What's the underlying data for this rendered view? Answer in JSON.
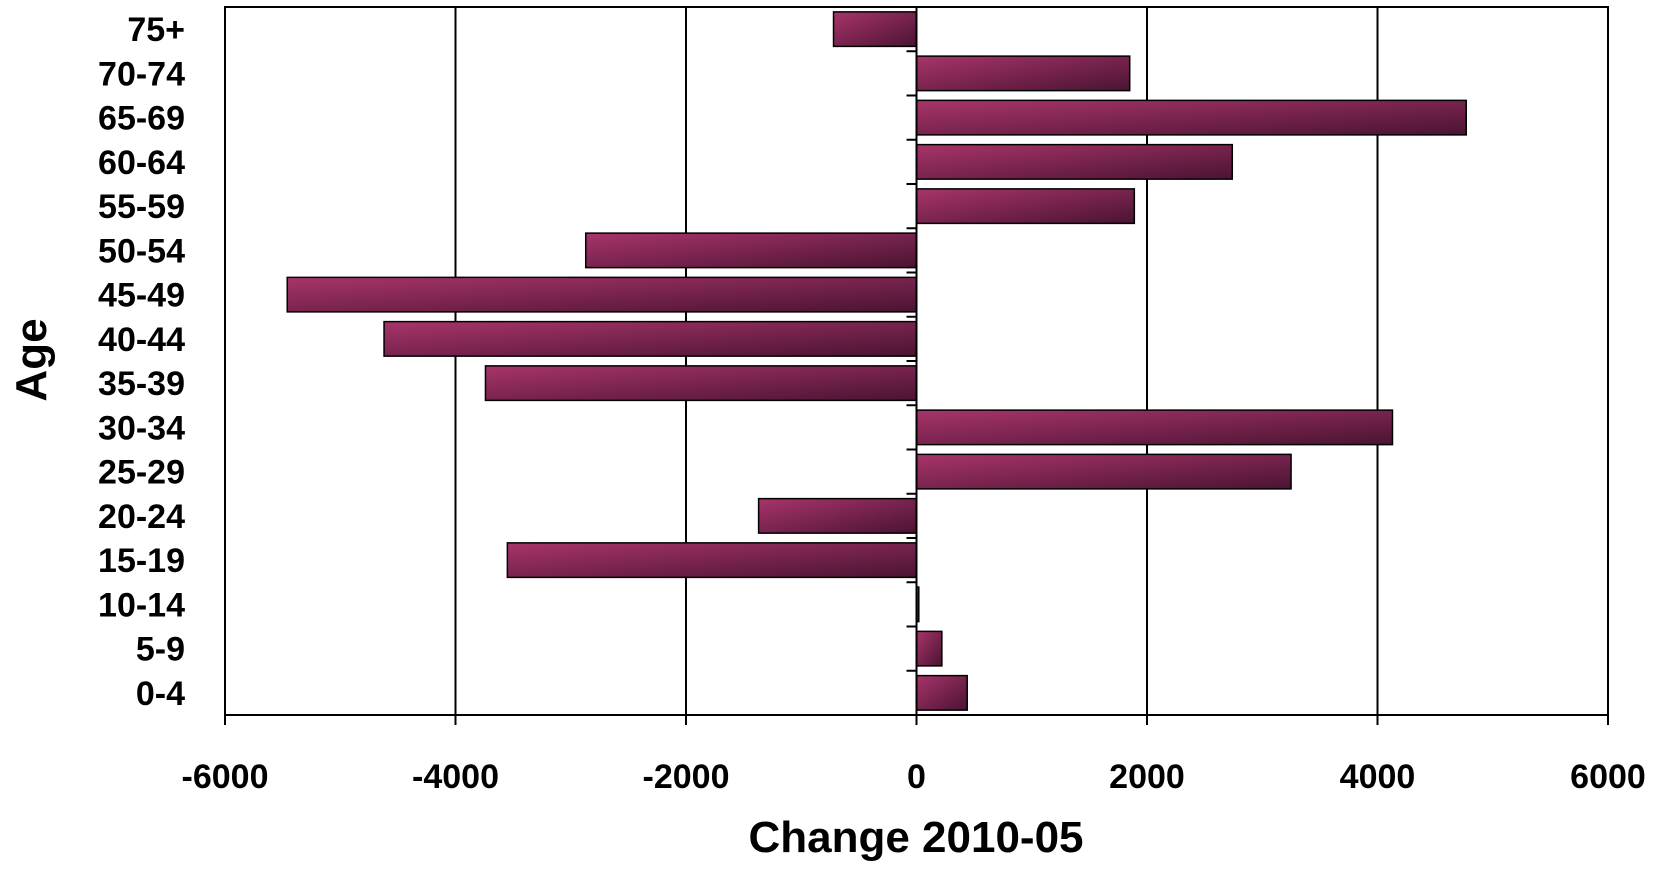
{
  "chart_data": {
    "type": "bar",
    "orientation": "horizontal",
    "title": "",
    "xlabel": "Change 2010-05",
    "ylabel": "Age",
    "categories": [
      "0-4",
      "5-9",
      "10-14",
      "15-19",
      "20-24",
      "25-29",
      "30-34",
      "35-39",
      "40-44",
      "45-49",
      "50-54",
      "55-59",
      "60-64",
      "65-69",
      "70-74",
      "75+"
    ],
    "values": [
      440,
      220,
      20,
      -3550,
      -1370,
      3250,
      4130,
      -3740,
      -4620,
      -5460,
      -2870,
      1890,
      2740,
      4770,
      1850,
      -720
    ],
    "xlim": [
      -6000,
      6000
    ],
    "xticks": [
      -6000,
      -4000,
      -2000,
      0,
      2000,
      4000,
      6000
    ],
    "grid": "vertical",
    "legend": "none",
    "colors": {
      "bar_light": "#a8346a",
      "bar_dark": "#4a1432",
      "bar_edge": "#000000",
      "grid": "#000000"
    }
  }
}
